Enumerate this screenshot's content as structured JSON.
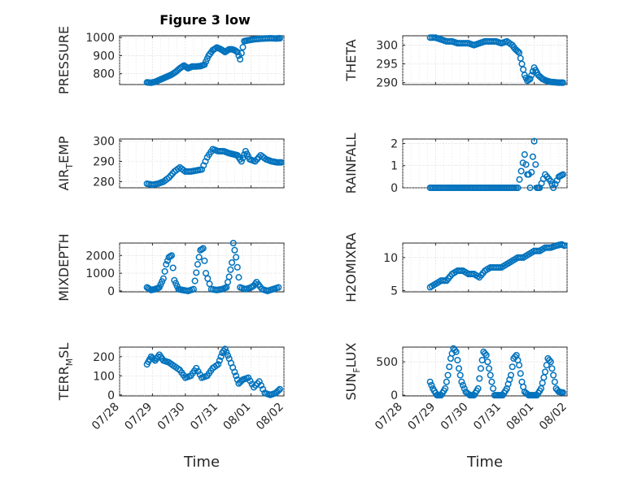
{
  "figure": {
    "title": "Figure 3 low"
  },
  "chart_data": [
    {
      "id": "pressure",
      "type": "scatter",
      "title": "Figure 3 low",
      "ylabel": "PRESSURE",
      "ylabel_sub": "",
      "ylabel_rest": "",
      "ylim": [
        740,
        1010
      ],
      "yticks": [
        800,
        900,
        1000
      ],
      "yticklabels": [
        "800",
        "900",
        "1000"
      ],
      "xlabel": "",
      "xticks": [],
      "x": [
        "07/28 20:00",
        "07/28 23:00",
        "07/29 02:00",
        "07/29 05:00",
        "07/29 08:00",
        "07/29 11:00",
        "07/29 14:00",
        "07/29 17:00",
        "07/29 20:00",
        "07/29 23:00",
        "07/30 02:00",
        "07/30 05:00",
        "07/30 08:00",
        "07/30 11:00",
        "07/30 14:00",
        "07/30 17:00",
        "07/30 20:00",
        "07/30 23:00",
        "07/31 02:00",
        "07/31 05:00",
        "07/31 08:00",
        "07/31 10:00",
        "07/31 12:00",
        "07/31 14:00",
        "07/31 16:00",
        "07/31 19:00",
        "07/31 22:00",
        "08/01 02:00",
        "08/01 06:00",
        "08/01 10:00",
        "08/01 14:00",
        "08/01 18:00",
        "08/01 21:00"
      ],
      "y": [
        752,
        750,
        755,
        765,
        775,
        785,
        795,
        810,
        830,
        845,
        830,
        840,
        840,
        842,
        850,
        900,
        930,
        945,
        935,
        920,
        935,
        935,
        930,
        920,
        880,
        980,
        985,
        990,
        993,
        995,
        996,
        995,
        996
      ]
    },
    {
      "id": "theta",
      "type": "scatter",
      "ylabel": "THETA",
      "ylabel_sub": "",
      "ylabel_rest": "",
      "ylim": [
        289.5,
        302.5
      ],
      "yticks": [
        290,
        295,
        300
      ],
      "yticklabels": [
        "290",
        "295",
        "300"
      ],
      "xlabel": "",
      "xticks": [],
      "x": [
        "07/28 20:00",
        "07/29 00:00",
        "07/29 04:00",
        "07/29 08:00",
        "07/29 12:00",
        "07/29 16:00",
        "07/29 20:00",
        "07/30 00:00",
        "07/30 04:00",
        "07/30 08:00",
        "07/30 12:00",
        "07/30 16:00",
        "07/30 20:00",
        "07/31 00:00",
        "07/31 04:00",
        "07/31 08:00",
        "07/31 10:00",
        "07/31 13:00",
        "07/31 15:00",
        "07/31 17:00",
        "07/31 19:00",
        "07/31 21:00",
        "08/01 00:00",
        "08/01 03:00",
        "08/01 06:00",
        "08/01 09:00",
        "08/01 12:00",
        "08/01 15:00",
        "08/01 18:00",
        "08/01 21:00"
      ],
      "y": [
        302,
        302,
        301.5,
        301,
        301,
        300.5,
        300.5,
        300.5,
        300,
        300.5,
        301,
        301,
        301,
        300.5,
        301,
        300,
        299,
        298,
        295,
        292,
        290.5,
        291,
        294,
        292,
        291,
        290.5,
        290.2,
        290.1,
        290,
        290
      ]
    },
    {
      "id": "airtemp",
      "type": "scatter",
      "ylabel": "AIR",
      "ylabel_sub": "T",
      "ylabel_rest": "EMP",
      "ylim": [
        277,
        301
      ],
      "yticks": [
        280,
        290,
        300
      ],
      "yticklabels": [
        "280",
        "290",
        "300"
      ],
      "xlabel": "",
      "xticks": [],
      "x": [
        "07/28 20:00",
        "07/29 00:00",
        "07/29 04:00",
        "07/29 08:00",
        "07/29 12:00",
        "07/29 16:00",
        "07/29 20:00",
        "07/30 00:00",
        "07/30 04:00",
        "07/30 08:00",
        "07/30 12:00",
        "07/30 16:00",
        "07/30 20:00",
        "07/31 00:00",
        "07/31 04:00",
        "07/31 08:00",
        "07/31 11:00",
        "07/31 14:00",
        "07/31 17:00",
        "07/31 20:00",
        "07/31 23:00",
        "08/01 03:00",
        "08/01 07:00",
        "08/01 11:00",
        "08/01 15:00",
        "08/01 19:00",
        "08/01 22:00"
      ],
      "y": [
        279,
        278.5,
        279,
        280,
        282,
        285,
        287,
        285,
        285,
        285.5,
        286,
        292,
        296,
        295,
        295,
        294,
        293.5,
        293,
        290,
        295,
        291,
        290,
        293,
        291,
        290,
        289.5,
        289.5
      ]
    },
    {
      "id": "rainfall",
      "type": "scatter",
      "ylabel": "RAINFALL",
      "ylabel_sub": "",
      "ylabel_rest": "",
      "ylim": [
        0,
        2.2
      ],
      "yticks": [
        0,
        1,
        2
      ],
      "yticklabels": [
        "0",
        "1",
        "2"
      ],
      "xlabel": "",
      "xticks": [],
      "x": [
        "07/28 20:00",
        "07/29 02:00",
        "07/29 08:00",
        "07/29 14:00",
        "07/29 20:00",
        "07/30 02:00",
        "07/30 08:00",
        "07/30 14:00",
        "07/30 20:00",
        "07/31 02:00",
        "07/31 08:00",
        "07/31 12:00",
        "07/31 17:00",
        "07/31 19:00",
        "07/31 20:00",
        "07/31 21:00",
        "08/01 00:00",
        "08/01 02:00",
        "08/01 04:00",
        "08/01 08:00",
        "08/01 12:00",
        "08/01 14:00",
        "08/01 18:00",
        "08/01 21:00"
      ],
      "y": [
        0,
        0,
        0,
        0,
        0,
        0,
        0,
        0,
        0,
        0,
        0,
        0,
        1.5,
        0.6,
        0.6,
        0,
        2.1,
        0,
        0,
        0.6,
        0.3,
        0,
        0.5,
        0.6
      ]
    },
    {
      "id": "mixdepth",
      "type": "scatter",
      "ylabel": "MIXDEPTH",
      "ylabel_sub": "",
      "ylabel_rest": "",
      "ylim": [
        -50,
        2700
      ],
      "yticks": [
        0,
        1000,
        2000
      ],
      "yticklabels": [
        "0",
        "1000",
        "2000"
      ],
      "xlabel": "",
      "xticks": [],
      "x": [
        "07/28 20:00",
        "07/28 23:00",
        "07/29 02:00",
        "07/29 05:00",
        "07/29 08:00",
        "07/29 10:00",
        "07/29 12:00",
        "07/29 14:00",
        "07/29 16:00",
        "07/29 19:00",
        "07/29 22:00",
        "07/30 02:00",
        "07/30 06:00",
        "07/30 09:00",
        "07/30 11:00",
        "07/30 13:00",
        "07/30 15:00",
        "07/30 19:00",
        "07/30 23:00",
        "07/31 03:00",
        "07/31 06:00",
        "07/31 08:00",
        "07/31 10:00",
        "07/31 11:00",
        "07/31 13:00",
        "07/31 16:00",
        "07/31 20:00",
        "08/01 00:00",
        "08/01 02:00",
        "08/01 04:00",
        "08/01 08:00",
        "08/01 12:00",
        "08/01 16:00",
        "08/01 20:00"
      ],
      "y": [
        200,
        50,
        100,
        200,
        700,
        1500,
        1900,
        2000,
        600,
        100,
        50,
        0,
        100,
        1500,
        2300,
        2400,
        1000,
        100,
        50,
        100,
        200,
        800,
        1600,
        2700,
        1900,
        200,
        100,
        200,
        300,
        500,
        100,
        0,
        100,
        200
      ]
    },
    {
      "id": "h2omixra",
      "type": "scatter",
      "ylabel": "H2OMIXRA",
      "ylabel_sub": "",
      "ylabel_rest": "",
      "ylim": [
        4.8,
        12.2
      ],
      "yticks": [
        5,
        10
      ],
      "yticklabels": [
        "5",
        "10"
      ],
      "xlabel": "",
      "xticks": [],
      "x": [
        "07/28 20:00",
        "07/29 00:00",
        "07/29 04:00",
        "07/29 08:00",
        "07/29 12:00",
        "07/29 16:00",
        "07/29 20:00",
        "07/30 00:00",
        "07/30 04:00",
        "07/30 08:00",
        "07/30 12:00",
        "07/30 16:00",
        "07/30 20:00",
        "07/31 00:00",
        "07/31 04:00",
        "07/31 08:00",
        "07/31 12:00",
        "07/31 16:00",
        "07/31 20:00",
        "08/01 00:00",
        "08/01 04:00",
        "08/01 08:00",
        "08/01 12:00",
        "08/01 16:00",
        "08/01 20:00",
        "08/01 22:00"
      ],
      "y": [
        5.5,
        6,
        6.5,
        6.5,
        7.5,
        8,
        8,
        7.5,
        7.5,
        7,
        8,
        8.5,
        8.5,
        8.5,
        9,
        9.5,
        10,
        10,
        10.5,
        11,
        11,
        11.5,
        11.5,
        11.8,
        12,
        11.8
      ]
    },
    {
      "id": "terrmsl",
      "type": "scatter",
      "ylabel": "TERR",
      "ylabel_sub": "M",
      "ylabel_rest": "SL",
      "ylim": [
        -5,
        250
      ],
      "yticks": [
        0,
        100,
        200
      ],
      "yticklabels": [
        "0",
        "100",
        "200"
      ],
      "xlabel": "Time",
      "xticks": [
        "07/28",
        "07/29",
        "07/30",
        "07/31",
        "08/01",
        "08/02"
      ],
      "x": [
        "07/28 20:00",
        "07/28 23:00",
        "07/29 02:00",
        "07/29 05:00",
        "07/29 08:00",
        "07/29 12:00",
        "07/29 16:00",
        "07/29 20:00",
        "07/30 00:00",
        "07/30 04:00",
        "07/30 08:00",
        "07/30 12:00",
        "07/30 16:00",
        "07/30 20:00",
        "07/31 00:00",
        "07/31 03:00",
        "07/31 05:00",
        "07/31 08:00",
        "07/31 12:00",
        "07/31 15:00",
        "07/31 18:00",
        "07/31 22:00",
        "08/01 02:00",
        "08/01 06:00",
        "08/01 10:00",
        "08/01 14:00",
        "08/01 18:00",
        "08/01 21:00"
      ],
      "y": [
        160,
        200,
        180,
        210,
        180,
        170,
        150,
        130,
        90,
        100,
        140,
        90,
        100,
        140,
        160,
        220,
        240,
        190,
        120,
        60,
        80,
        90,
        40,
        70,
        10,
        0,
        10,
        30
      ]
    },
    {
      "id": "sunflux",
      "type": "scatter",
      "ylabel": "SUN",
      "ylabel_sub": "F",
      "ylabel_rest": "LUX",
      "ylim": [
        -10,
        720
      ],
      "yticks": [
        0,
        500
      ],
      "yticklabels": [
        "0",
        "500"
      ],
      "xlabel": "Time",
      "xticks": [
        "07/28",
        "07/29",
        "07/30",
        "07/31",
        "08/01",
        "08/02"
      ],
      "x": [
        "07/28 20:00",
        "07/28 22:00",
        "07/29 01:00",
        "07/29 04:00",
        "07/29 07:00",
        "07/29 09:00",
        "07/29 11:00",
        "07/29 13:00",
        "07/29 15:00",
        "07/29 17:00",
        "07/29 19:00",
        "07/29 22:00",
        "07/30 01:00",
        "07/30 04:00",
        "07/30 07:00",
        "07/30 09:00",
        "07/30 11:00",
        "07/30 13:00",
        "07/30 15:00",
        "07/30 17:00",
        "07/30 19:00",
        "07/30 22:00",
        "07/31 01:00",
        "07/31 04:00",
        "07/31 07:00",
        "07/31 09:00",
        "07/31 11:00",
        "07/31 13:00",
        "07/31 15:00",
        "07/31 17:00",
        "07/31 20:00",
        "07/31 23:00",
        "08/01 02:00",
        "08/01 05:00",
        "08/01 08:00",
        "08/01 10:00",
        "08/01 12:00",
        "08/01 14:00",
        "08/01 16:00",
        "08/01 18:00",
        "08/01 21:00"
      ],
      "y": [
        200,
        100,
        0,
        0,
        100,
        300,
        550,
        700,
        650,
        400,
        200,
        50,
        0,
        0,
        100,
        400,
        650,
        600,
        400,
        200,
        0,
        0,
        0,
        100,
        300,
        550,
        600,
        450,
        200,
        50,
        0,
        0,
        0,
        100,
        350,
        550,
        500,
        300,
        100,
        50,
        40
      ]
    }
  ]
}
